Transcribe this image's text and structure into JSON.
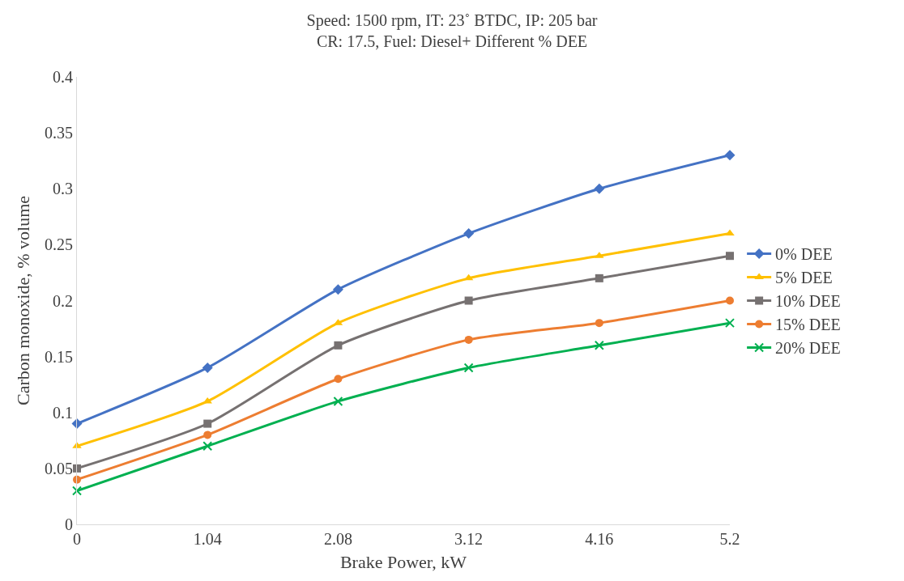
{
  "chart_data": {
    "type": "line",
    "title": "Speed: 1500 rpm, IT: 23˚ BTDC, IP: 205 bar\nCR: 17.5, Fuel: Diesel+ Different % DEE",
    "xlabel": "Brake Power, kW",
    "ylabel": "Carbon monoxide, % volume",
    "categories": [
      "0",
      "1.04",
      "2.08",
      "3.12",
      "4.16",
      "5.2"
    ],
    "series": [
      {
        "name": "0% DEE",
        "color": "#4472c4",
        "marker": "diamond",
        "values": [
          0.09,
          0.14,
          0.21,
          0.26,
          0.3,
          0.33
        ]
      },
      {
        "name": "5% DEE",
        "color": "#ffc000",
        "marker": "triangle",
        "values": [
          0.07,
          0.11,
          0.18,
          0.22,
          0.24,
          0.26
        ]
      },
      {
        "name": "10% DEE",
        "color": "#767171",
        "marker": "square",
        "values": [
          0.05,
          0.09,
          0.16,
          0.2,
          0.22,
          0.24
        ]
      },
      {
        "name": "15% DEE",
        "color": "#ed7d31",
        "marker": "circle",
        "values": [
          0.04,
          0.08,
          0.13,
          0.165,
          0.18,
          0.2
        ]
      },
      {
        "name": "20% DEE",
        "color": "#00b050",
        "marker": "cross",
        "values": [
          0.03,
          0.07,
          0.11,
          0.14,
          0.16,
          0.18
        ]
      }
    ],
    "ylim": [
      0,
      0.4
    ],
    "yticks": [
      0,
      0.05,
      0.1,
      0.15,
      0.2,
      0.25,
      0.3,
      0.35,
      0.4
    ],
    "grid": false,
    "legend": "right",
    "line_style": "solid"
  }
}
